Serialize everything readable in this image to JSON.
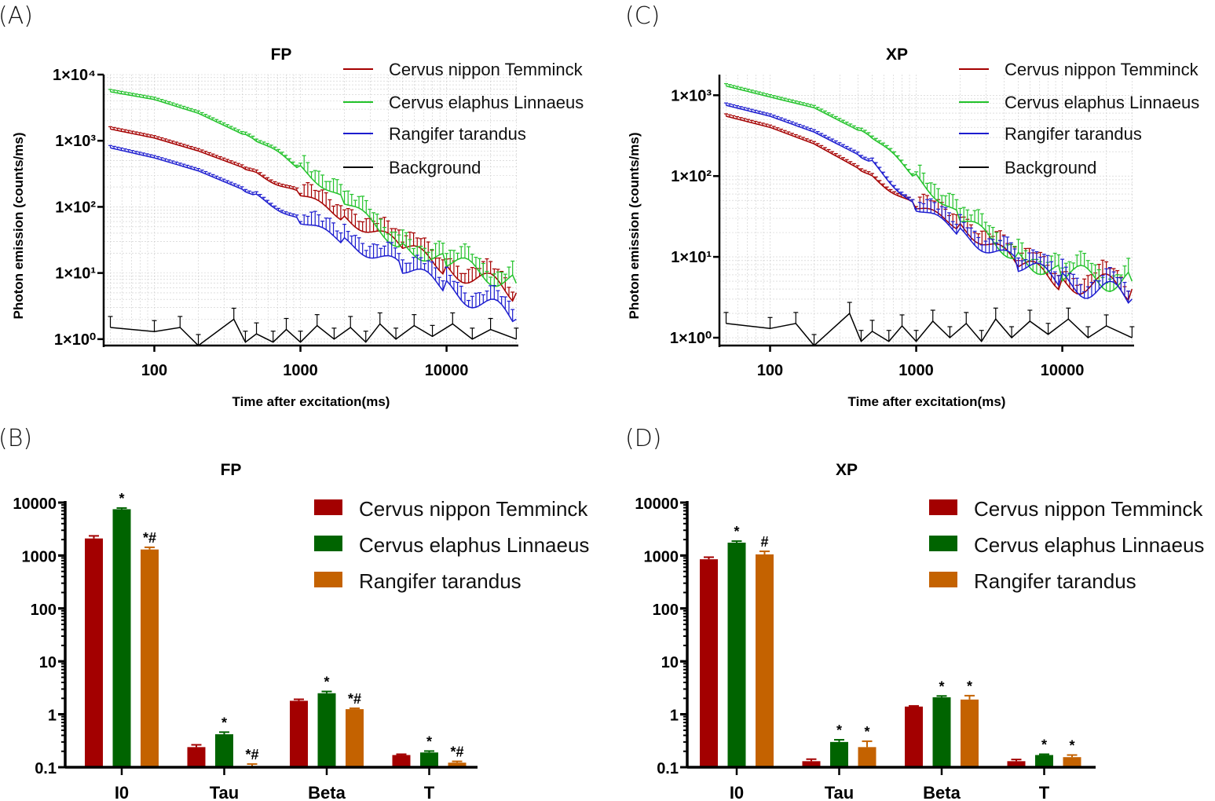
{
  "panel_labels": [
    "(A)",
    "(B)",
    "(C)",
    "(D)"
  ],
  "colors": {
    "nippon": "#a50000",
    "elaphus": "#22c22a",
    "tarandus": "#1c1ccf",
    "background": "#000000",
    "bar_nippon": "#a30000",
    "bar_elaphus": "#006400",
    "bar_tarandus": "#c46200"
  },
  "chart_data": [
    {
      "panel": "A",
      "type": "line",
      "title": "FP",
      "xlabel": "Time after excitation(ms)",
      "ylabel": "Photon emission (counts/ms)",
      "xscale": "log",
      "yscale": "log",
      "xlim": [
        45,
        31000
      ],
      "ylim": [
        0.8,
        10000
      ],
      "xticks": [
        "100",
        "1000",
        "10000"
      ],
      "yticks": [
        "1×10⁰",
        "1×10¹",
        "1×10²",
        "1×10³",
        "1×10⁴"
      ],
      "grid": true,
      "legend_position": "top-right",
      "series": [
        {
          "name": "Cervus nippon Temminck",
          "points": [
            [
              50,
              1500
            ],
            [
              100,
              1100
            ],
            [
              200,
              700
            ],
            [
              500,
              330
            ],
            [
              1000,
              150
            ],
            [
              2000,
              70
            ],
            [
              5000,
              25
            ],
            [
              10000,
              12
            ],
            [
              30000,
              5
            ]
          ]
        },
        {
          "name": "Cervus elaphus Linnaeus",
          "points": [
            [
              50,
              5500
            ],
            [
              100,
              4200
            ],
            [
              200,
              2600
            ],
            [
              500,
              1000
            ],
            [
              1000,
              400
            ],
            [
              2000,
              120
            ],
            [
              5000,
              25
            ],
            [
              10000,
              15
            ],
            [
              30000,
              7
            ]
          ]
        },
        {
          "name": "Rangifer tarandus",
          "points": [
            [
              50,
              780
            ],
            [
              100,
              550
            ],
            [
              200,
              350
            ],
            [
              500,
              150
            ],
            [
              1000,
              60
            ],
            [
              2000,
              30
            ],
            [
              5000,
              12
            ],
            [
              10000,
              6
            ],
            [
              30000,
              2
            ]
          ]
        },
        {
          "name": "Background",
          "points": [
            [
              50,
              1.5
            ],
            [
              100,
              1.3
            ],
            [
              150,
              1.5
            ],
            [
              200,
              0.8
            ],
            [
              350,
              2
            ],
            [
              420,
              0.9
            ],
            [
              500,
              1.2
            ],
            [
              650,
              0.9
            ],
            [
              800,
              1.4
            ],
            [
              1000,
              0.9
            ],
            [
              1300,
              1.6
            ],
            [
              1700,
              1.0
            ],
            [
              2200,
              1.5
            ],
            [
              2800,
              0.9
            ],
            [
              3500,
              1.7
            ],
            [
              4500,
              1.0
            ],
            [
              6000,
              1.6
            ],
            [
              8000,
              1.1
            ],
            [
              11000,
              1.7
            ],
            [
              15000,
              1.0
            ],
            [
              20000,
              1.4
            ],
            [
              30000,
              1.0
            ]
          ]
        }
      ]
    },
    {
      "panel": "B",
      "type": "bar",
      "title": "FP",
      "yscale": "log",
      "ylim": [
        0.1,
        10000
      ],
      "yticks": [
        "0.1",
        "1",
        "10",
        "100",
        "1000",
        "10000"
      ],
      "categories": [
        "I0",
        "Tau",
        "Beta",
        "T"
      ],
      "legend_position": "top-right",
      "series": [
        {
          "name": "Cervus nippon Temminck",
          "values": [
            2100,
            0.24,
            1.8,
            0.17
          ],
          "errors": [
            250,
            0.025,
            0.12,
            0.006
          ],
          "annotations": [
            "",
            "",
            "",
            ""
          ]
        },
        {
          "name": "Cervus elaphus Linnaeus",
          "values": [
            7500,
            0.42,
            2.5,
            0.19
          ],
          "errors": [
            400,
            0.04,
            0.2,
            0.012
          ],
          "annotations": [
            "*",
            "*",
            "*",
            "*"
          ]
        },
        {
          "name": "Rangifer tarandus",
          "values": [
            1300,
            0.105,
            1.25,
            0.122
          ],
          "errors": [
            130,
            0.01,
            0.05,
            0.007
          ],
          "annotations": [
            "*#",
            "*#",
            "*#",
            "*#"
          ]
        }
      ]
    },
    {
      "panel": "C",
      "type": "line",
      "title": "XP",
      "xlabel": "Time after excitation(ms)",
      "ylabel": "Photon emission (counts/ms)",
      "xscale": "log",
      "yscale": "log",
      "xlim": [
        45,
        31000
      ],
      "ylim": [
        0.8,
        1800
      ],
      "xticks": [
        "100",
        "1000",
        "10000"
      ],
      "yticks": [
        "1×10⁰",
        "1×10¹",
        "1×10²",
        "1×10³"
      ],
      "grid": true,
      "legend_position": "top-right",
      "series": [
        {
          "name": "Cervus nippon Temminck",
          "points": [
            [
              50,
              550
            ],
            [
              100,
              400
            ],
            [
              200,
              250
            ],
            [
              500,
              100
            ],
            [
              1000,
              40
            ],
            [
              2000,
              25
            ],
            [
              5000,
              8
            ],
            [
              10000,
              5
            ],
            [
              30000,
              4
            ]
          ]
        },
        {
          "name": "Cervus elaphus Linnaeus",
          "points": [
            [
              50,
              1300
            ],
            [
              100,
              950
            ],
            [
              200,
              700
            ],
            [
              500,
              300
            ],
            [
              1000,
              100
            ],
            [
              2000,
              30
            ],
            [
              5000,
              10
            ],
            [
              10000,
              6
            ],
            [
              30000,
              5
            ]
          ]
        },
        {
          "name": "Rangifer tarandus",
          "points": [
            [
              50,
              750
            ],
            [
              100,
              550
            ],
            [
              200,
              350
            ],
            [
              500,
              150
            ],
            [
              1000,
              40
            ],
            [
              2000,
              20
            ],
            [
              5000,
              8
            ],
            [
              10000,
              5
            ],
            [
              30000,
              3
            ]
          ]
        },
        {
          "name": "Background",
          "points": [
            [
              50,
              1.5
            ],
            [
              100,
              1.3
            ],
            [
              150,
              1.5
            ],
            [
              200,
              0.8
            ],
            [
              350,
              2
            ],
            [
              420,
              0.9
            ],
            [
              500,
              1.2
            ],
            [
              650,
              0.9
            ],
            [
              800,
              1.4
            ],
            [
              1000,
              0.9
            ],
            [
              1300,
              1.6
            ],
            [
              1700,
              1.0
            ],
            [
              2200,
              1.5
            ],
            [
              2800,
              0.9
            ],
            [
              3500,
              1.7
            ],
            [
              4500,
              1.0
            ],
            [
              6000,
              1.6
            ],
            [
              8000,
              1.1
            ],
            [
              11000,
              1.7
            ],
            [
              15000,
              1.0
            ],
            [
              20000,
              1.4
            ],
            [
              30000,
              1.0
            ]
          ]
        }
      ]
    },
    {
      "panel": "D",
      "type": "bar",
      "title": "XP",
      "yscale": "log",
      "ylim": [
        0.1,
        10000
      ],
      "yticks": [
        "0.1",
        "1",
        "10",
        "100",
        "1000",
        "10000"
      ],
      "categories": [
        "I0",
        "Tau",
        "Beta",
        "T"
      ],
      "legend_position": "top-right",
      "series": [
        {
          "name": "Cervus nippon Temminck",
          "values": [
            850,
            0.13,
            1.4,
            0.13
          ],
          "errors": [
            80,
            0.012,
            0.04,
            0.01
          ],
          "annotations": [
            "",
            "",
            "",
            ""
          ]
        },
        {
          "name": "Cervus elaphus Linnaeus",
          "values": [
            1750,
            0.3,
            2.1,
            0.17
          ],
          "errors": [
            120,
            0.03,
            0.12,
            0.006
          ],
          "annotations": [
            "*",
            "*",
            "*",
            "*"
          ]
        },
        {
          "name": "Rangifer tarandus",
          "values": [
            1050,
            0.24,
            1.9,
            0.155
          ],
          "errors": [
            150,
            0.07,
            0.35,
            0.015
          ],
          "annotations": [
            "#",
            "*",
            "*",
            "*"
          ]
        }
      ]
    }
  ]
}
